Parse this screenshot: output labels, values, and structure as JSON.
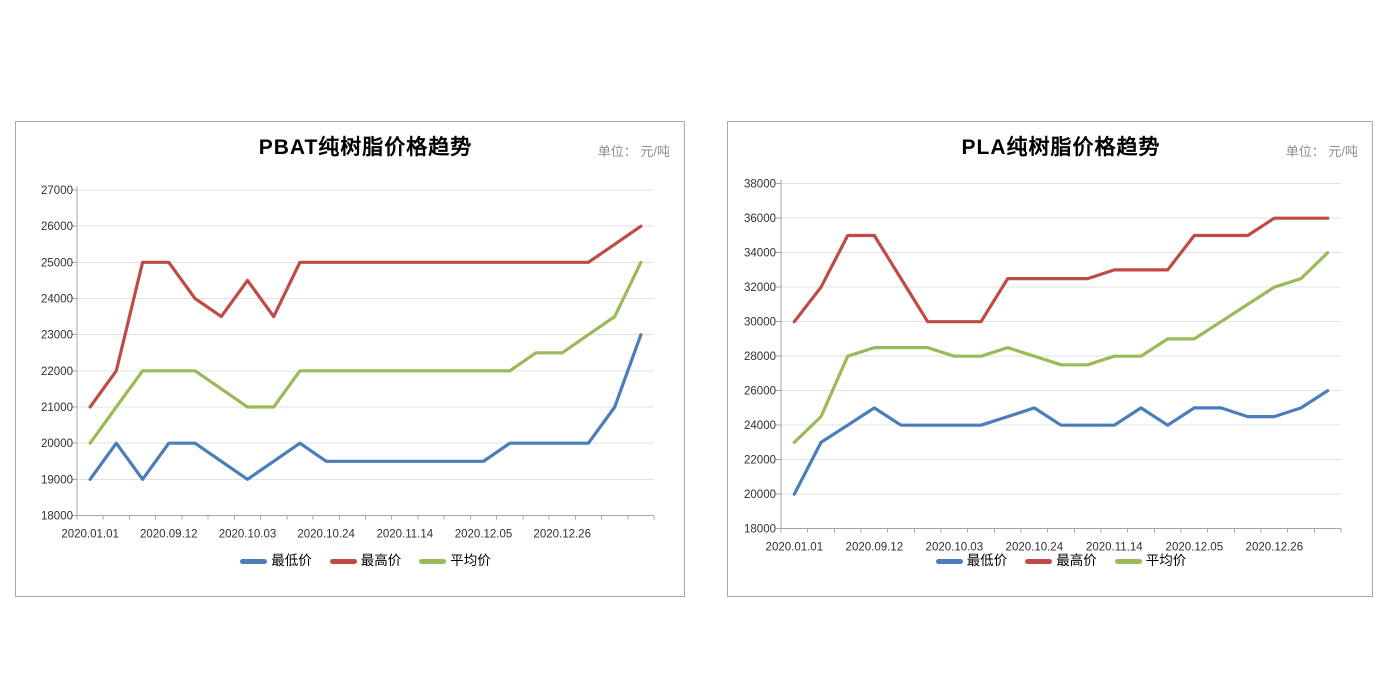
{
  "chart_data": [
    {
      "type": "line",
      "title": "PBAT纯树脂价格趋势",
      "unit_label": "单位： 元/吨",
      "legend_position": "bottom",
      "grid": true,
      "ylim": [
        18000,
        27000
      ],
      "ytick_step": 1000,
      "categories": [
        "2020.01.01",
        "",
        "",
        "2020.09.12",
        "",
        "",
        "2020.10.03",
        "",
        "",
        "2020.10.24",
        "",
        "",
        "2020.11.14",
        "",
        "",
        "2020.12.05",
        "",
        "",
        "2020.12.26",
        "",
        "",
        ""
      ],
      "series": [
        {
          "key": "min",
          "name": "最低价",
          "color": "#4a7ebb",
          "values": [
            19000,
            20000,
            19000,
            20000,
            20000,
            19500,
            19000,
            19500,
            20000,
            19500,
            19500,
            19500,
            19500,
            19500,
            19500,
            19500,
            20000,
            20000,
            20000,
            20000,
            21000,
            23000
          ]
        },
        {
          "key": "max",
          "name": "最高价",
          "color": "#bf4b47",
          "values": [
            21000,
            22000,
            25000,
            25000,
            24000,
            23500,
            24500,
            23500,
            25000,
            25000,
            25000,
            25000,
            25000,
            25000,
            25000,
            25000,
            25000,
            25000,
            25000,
            25000,
            25500,
            26000
          ]
        },
        {
          "key": "avg",
          "name": "平均价",
          "color": "#9aba58",
          "values": [
            20000,
            21000,
            22000,
            22000,
            22000,
            21500,
            21000,
            21000,
            22000,
            22000,
            22000,
            22000,
            22000,
            22000,
            22000,
            22000,
            22000,
            22500,
            22500,
            23000,
            23500,
            25000
          ]
        }
      ]
    },
    {
      "type": "line",
      "title": "PLA纯树脂价格趋势",
      "unit_label": "单位： 元/吨",
      "legend_position": "bottom",
      "grid": true,
      "ylim": [
        18000,
        38000
      ],
      "ytick_step": 2000,
      "categories": [
        "2020.01.01",
        "",
        "",
        "2020.09.12",
        "",
        "",
        "2020.10.03",
        "",
        "",
        "2020.10.24",
        "",
        "",
        "2020.11.14",
        "",
        "",
        "2020.12.05",
        "",
        "",
        "2020.12.26",
        "",
        ""
      ],
      "series": [
        {
          "key": "min",
          "name": "最低价",
          "color": "#4a7ebb",
          "values": [
            20000,
            23000,
            24000,
            25000,
            24000,
            24000,
            24000,
            24000,
            24500,
            25000,
            24000,
            24000,
            24000,
            25000,
            24000,
            25000,
            25000,
            24500,
            24500,
            25000,
            26000
          ]
        },
        {
          "key": "max",
          "name": "最高价",
          "color": "#bf4b47",
          "values": [
            30000,
            32000,
            35000,
            35000,
            32500,
            30000,
            30000,
            30000,
            32500,
            32500,
            32500,
            32500,
            33000,
            33000,
            33000,
            35000,
            35000,
            35000,
            36000,
            36000,
            36000
          ]
        },
        {
          "key": "avg",
          "name": "平均价",
          "color": "#9aba58",
          "values": [
            23000,
            24500,
            28000,
            28500,
            28500,
            28500,
            28000,
            28000,
            28500,
            28000,
            27500,
            27500,
            28000,
            28000,
            29000,
            29000,
            30000,
            31000,
            32000,
            32500,
            34000
          ]
        }
      ]
    }
  ]
}
